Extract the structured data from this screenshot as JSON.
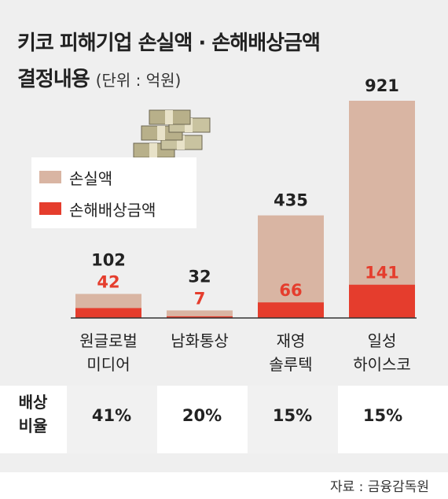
{
  "title_line1": "키코 피해기업 손실액 · 손해배상금액",
  "title_line2": "결정내용",
  "unit": "(단위 : 억원)",
  "legend": [
    {
      "label": "손실액",
      "color": "#d9b5a3"
    },
    {
      "label": "손해배상금액",
      "color": "#e53d2d"
    }
  ],
  "chart_data": {
    "type": "bar",
    "categories": [
      [
        "원글로벌",
        "미디어"
      ],
      [
        "남화통상"
      ],
      [
        "재영",
        "솔루텍"
      ],
      [
        "일성",
        "하이스코"
      ]
    ],
    "series": [
      {
        "name": "손실액",
        "values": [
          102,
          32,
          435,
          921
        ],
        "color": "#d9b5a3"
      },
      {
        "name": "손해배상금액",
        "values": [
          42,
          7,
          66,
          141
        ],
        "color": "#e53d2d"
      }
    ],
    "ylim": [
      0,
      921
    ]
  },
  "table": {
    "row_label": [
      "배상",
      "비율"
    ],
    "values": [
      "41%",
      "20%",
      "15%",
      "15%"
    ]
  },
  "source": "자료 : 금융감독원"
}
